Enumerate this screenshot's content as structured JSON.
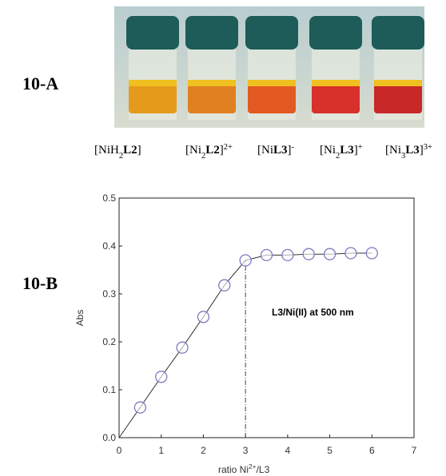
{
  "panel_labels": [
    "10-A",
    "10-B"
  ],
  "vial_labels": [
    [
      {
        "t": "[NiH"
      },
      {
        "t": "2",
        "sub": true
      },
      {
        "t": "L2",
        "bold": true
      },
      {
        "t": "]"
      }
    ],
    [
      {
        "t": "[Ni"
      },
      {
        "t": "2",
        "sub": true
      },
      {
        "t": "L2",
        "bold": true
      },
      {
        "t": "]"
      },
      {
        "t": "2+",
        "sup": true
      }
    ],
    [
      {
        "t": "[Ni"
      },
      {
        "t": "L3",
        "bold": true
      },
      {
        "t": "]"
      },
      {
        "t": "-",
        "sup": true
      }
    ],
    [
      {
        "t": "[Ni"
      },
      {
        "t": "2",
        "sub": true
      },
      {
        "t": "L3",
        "bold": true
      },
      {
        "t": "]"
      },
      {
        "t": "+",
        "sup": true
      }
    ],
    [
      {
        "t": "[Ni"
      },
      {
        "t": "3",
        "sub": true
      },
      {
        "t": "L3",
        "bold": true
      },
      {
        "t": "]"
      },
      {
        "t": "3+",
        "sup": true
      }
    ]
  ],
  "chart_data": {
    "type": "scatter",
    "ylabel": "Abs",
    "xlabel": [
      {
        "t": "ratio Ni"
      },
      {
        "t": "2+",
        "sup": true
      },
      {
        "t": "/L3"
      }
    ],
    "annotation": "L3/Ni(II) at 500 nm",
    "xlim": [
      0,
      7
    ],
    "ylim": [
      0,
      0.5
    ],
    "xticks": [
      0,
      1,
      2,
      3,
      4,
      5,
      6,
      7
    ],
    "yticks": [
      {
        "value": 0,
        "label": "0.0"
      },
      0.1,
      0.2,
      0.3,
      0.4,
      0.5
    ],
    "vline": {
      "x": 3,
      "y": 0.37
    },
    "series": [
      {
        "type": "line",
        "color": "#333333",
        "x": [
          0,
          0.5,
          1,
          1.5,
          2,
          2.5,
          3,
          3.5,
          4,
          4.5,
          5,
          5.5,
          6
        ],
        "values": [
          0,
          0.063,
          0.127,
          0.188,
          0.252,
          0.318,
          0.37,
          0.381,
          0.381,
          0.383,
          0.383,
          0.385,
          0.385
        ]
      },
      {
        "type": "markers",
        "color": "#7b7bc0",
        "x": [
          0.5,
          1,
          1.5,
          2,
          2.5,
          3,
          3.5,
          4,
          4.5,
          5,
          5.5,
          6
        ],
        "values": [
          0.063,
          0.127,
          0.188,
          0.252,
          0.318,
          0.37,
          0.381,
          0.381,
          0.383,
          0.383,
          0.385,
          0.385
        ]
      }
    ]
  }
}
